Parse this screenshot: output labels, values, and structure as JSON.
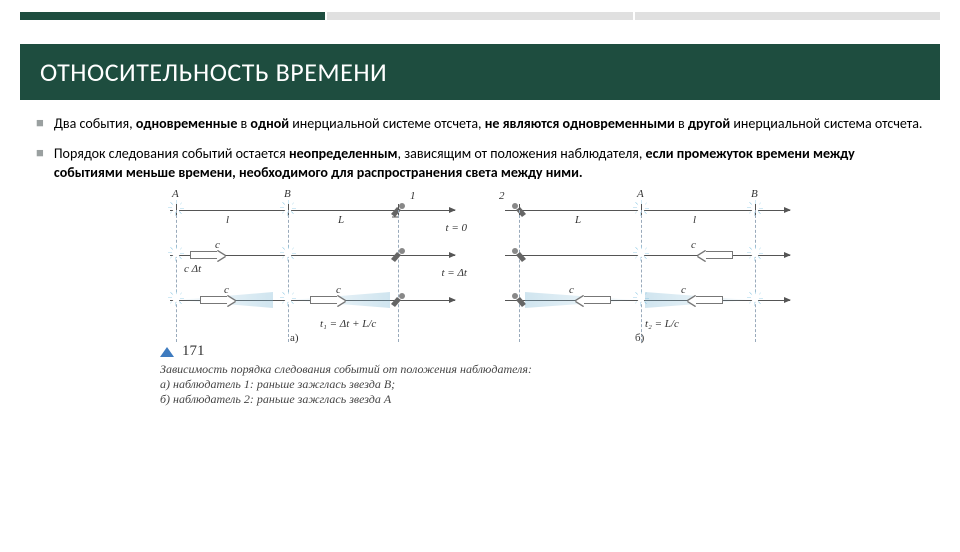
{
  "theme": {
    "accent": "#1e4d3f",
    "bullet_color": "#9aa0a0",
    "star_color": "#5aa2c4",
    "triangle_color": "#3e7bbf"
  },
  "title": "ОТНОСИТЕЛЬНОСТЬ ВРЕМЕНИ",
  "bullets": [
    {
      "runs": [
        {
          "t": "Два события, ",
          "b": false
        },
        {
          "t": "одновременные",
          "b": true
        },
        {
          "t": " в ",
          "b": false
        },
        {
          "t": "одной",
          "b": true
        },
        {
          "t": " инерциальной системе отсчета, ",
          "b": false
        },
        {
          "t": "не являются одновременными",
          "b": true
        },
        {
          "t": " в ",
          "b": false
        },
        {
          "t": "другой",
          "b": true
        },
        {
          "t": " инерциальной система отсчета.",
          "b": false
        }
      ]
    },
    {
      "runs": [
        {
          "t": "Порядок следования событий остается ",
          "b": false
        },
        {
          "t": "неопределенным",
          "b": true
        },
        {
          "t": ", зависящим от положения наблюдателя, ",
          "b": false
        },
        {
          "t": "если промежуток времени между событиями меньше времени, необходимого для распространения света между ними.",
          "b": true
        }
      ]
    }
  ],
  "diagram": {
    "left": {
      "top_labels": {
        "A": "A",
        "B": "B",
        "obs": "1",
        "spanL": "l",
        "spanR": "L"
      },
      "row2": {
        "c": "c",
        "seg": "c Δt",
        "time": "t = Δt"
      },
      "row1_time": "t = 0",
      "formula": "t₁ = Δt + L/c",
      "panel_tag": "a)"
    },
    "right": {
      "top_labels": {
        "A": "A",
        "B": "B",
        "obs": "2",
        "spanL": "L",
        "spanR": "l"
      },
      "row2": {
        "c": "c"
      },
      "formula": "t₂ = L/c",
      "panel_tag": "б)"
    }
  },
  "figure": {
    "number": "171",
    "caption_lines": [
      "Зависимость порядка следования событий от положения наблюдателя:",
      "а) наблюдатель 1: раньше зажглась звезда B;",
      "б) наблюдатель 2: раньше зажглась звезда A"
    ]
  }
}
